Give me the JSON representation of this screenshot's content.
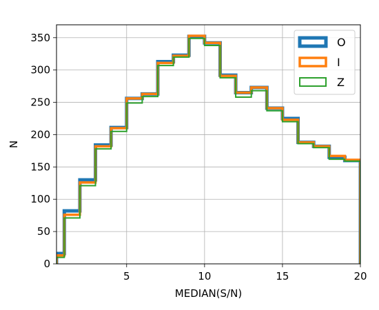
{
  "chart_data": {
    "type": "step-histogram",
    "xlabel": "MEDIAN(S/N)",
    "ylabel": "N",
    "xlim": [
      0.5,
      20
    ],
    "ylim": [
      0,
      370
    ],
    "xticks": [
      5,
      10,
      15,
      20
    ],
    "yticks": [
      0,
      50,
      100,
      150,
      200,
      250,
      300,
      350
    ],
    "grid": true,
    "legend_position": "top-right",
    "bin_edges": [
      0.5,
      1,
      2,
      3,
      4,
      5,
      6,
      7,
      8,
      9,
      10,
      11,
      12,
      13,
      14,
      15,
      16,
      17,
      18,
      19,
      20
    ],
    "series": [
      {
        "name": "O",
        "color": "#1f77b4",
        "line_width": 5,
        "values": [
          16,
          82,
          130,
          184,
          211,
          256,
          263,
          313,
          323,
          352,
          342,
          292,
          265,
          273,
          241,
          225,
          188,
          182,
          165,
          160
        ]
      },
      {
        "name": "I",
        "color": "#ff7f0e",
        "line_width": 3.5,
        "values": [
          13,
          76,
          126,
          182,
          210,
          256,
          263,
          311,
          322,
          353,
          342,
          291,
          265,
          273,
          241,
          223,
          188,
          182,
          167,
          161
        ]
      },
      {
        "name": "Z",
        "color": "#2ca02c",
        "line_width": 2,
        "values": [
          10,
          71,
          121,
          178,
          205,
          249,
          259,
          307,
          320,
          349,
          338,
          288,
          258,
          268,
          237,
          220,
          186,
          180,
          162,
          159
        ]
      }
    ]
  }
}
